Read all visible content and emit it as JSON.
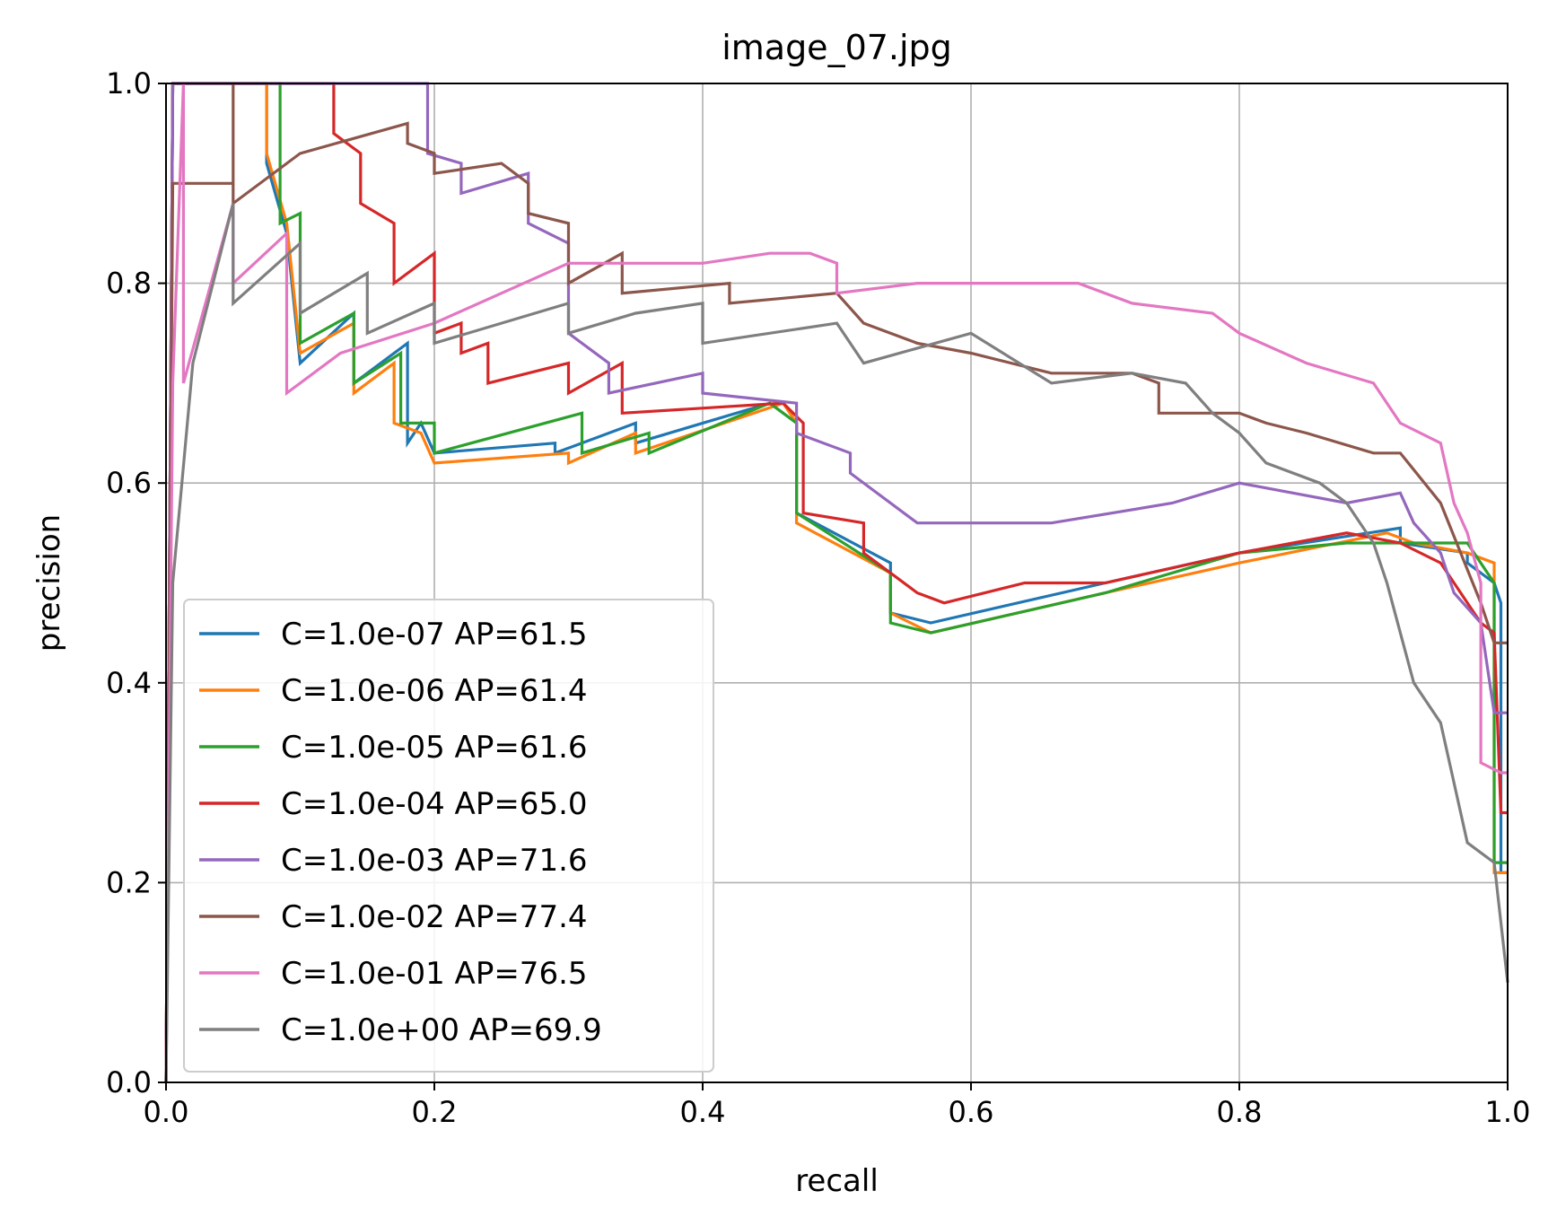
{
  "chart_data": {
    "type": "line",
    "title": "image_07.jpg",
    "xlabel": "recall",
    "ylabel": "precision",
    "xlim": [
      0.0,
      1.0
    ],
    "ylim": [
      0.0,
      1.0
    ],
    "xticks": [
      "0.0",
      "0.2",
      "0.4",
      "0.6",
      "0.8",
      "1.0"
    ],
    "yticks": [
      "0.0",
      "0.2",
      "0.4",
      "0.6",
      "0.8",
      "1.0"
    ],
    "grid": true,
    "legend_position": "lower-left",
    "series": [
      {
        "name": "C=1.0e-07 AP=61.5",
        "color": "#1f77b4",
        "points": [
          [
            0.0,
            0.0
          ],
          [
            0.005,
            1.0
          ],
          [
            0.075,
            1.0
          ],
          [
            0.075,
            0.92
          ],
          [
            0.09,
            0.85
          ],
          [
            0.1,
            0.72
          ],
          [
            0.14,
            0.77
          ],
          [
            0.14,
            0.7
          ],
          [
            0.18,
            0.74
          ],
          [
            0.18,
            0.64
          ],
          [
            0.19,
            0.66
          ],
          [
            0.2,
            0.63
          ],
          [
            0.29,
            0.64
          ],
          [
            0.29,
            0.63
          ],
          [
            0.35,
            0.66
          ],
          [
            0.35,
            0.64
          ],
          [
            0.45,
            0.68
          ],
          [
            0.47,
            0.66
          ],
          [
            0.47,
            0.57
          ],
          [
            0.54,
            0.52
          ],
          [
            0.54,
            0.47
          ],
          [
            0.57,
            0.46
          ],
          [
            0.7,
            0.5
          ],
          [
            0.8,
            0.53
          ],
          [
            0.92,
            0.555
          ],
          [
            0.92,
            0.54
          ],
          [
            0.97,
            0.53
          ],
          [
            0.97,
            0.52
          ],
          [
            0.99,
            0.5
          ],
          [
            0.995,
            0.48
          ],
          [
            0.995,
            0.21
          ],
          [
            1.0,
            0.21
          ]
        ]
      },
      {
        "name": "C=1.0e-06 AP=61.4",
        "color": "#ff7f0e",
        "points": [
          [
            0.0,
            0.0
          ],
          [
            0.005,
            1.0
          ],
          [
            0.075,
            1.0
          ],
          [
            0.075,
            0.93
          ],
          [
            0.09,
            0.86
          ],
          [
            0.1,
            0.73
          ],
          [
            0.14,
            0.76
          ],
          [
            0.14,
            0.69
          ],
          [
            0.17,
            0.72
          ],
          [
            0.17,
            0.66
          ],
          [
            0.19,
            0.65
          ],
          [
            0.2,
            0.62
          ],
          [
            0.3,
            0.63
          ],
          [
            0.3,
            0.62
          ],
          [
            0.35,
            0.65
          ],
          [
            0.35,
            0.63
          ],
          [
            0.46,
            0.68
          ],
          [
            0.47,
            0.66
          ],
          [
            0.47,
            0.56
          ],
          [
            0.54,
            0.51
          ],
          [
            0.54,
            0.47
          ],
          [
            0.57,
            0.45
          ],
          [
            0.7,
            0.49
          ],
          [
            0.8,
            0.52
          ],
          [
            0.91,
            0.55
          ],
          [
            0.93,
            0.54
          ],
          [
            0.97,
            0.53
          ],
          [
            0.99,
            0.52
          ],
          [
            0.99,
            0.21
          ],
          [
            1.0,
            0.21
          ]
        ]
      },
      {
        "name": "C=1.0e-05 AP=61.6",
        "color": "#2ca02c",
        "points": [
          [
            0.0,
            0.0
          ],
          [
            0.005,
            1.0
          ],
          [
            0.085,
            1.0
          ],
          [
            0.085,
            0.86
          ],
          [
            0.1,
            0.87
          ],
          [
            0.1,
            0.74
          ],
          [
            0.14,
            0.77
          ],
          [
            0.14,
            0.7
          ],
          [
            0.175,
            0.73
          ],
          [
            0.175,
            0.66
          ],
          [
            0.2,
            0.66
          ],
          [
            0.2,
            0.63
          ],
          [
            0.31,
            0.67
          ],
          [
            0.31,
            0.63
          ],
          [
            0.36,
            0.65
          ],
          [
            0.36,
            0.63
          ],
          [
            0.45,
            0.68
          ],
          [
            0.47,
            0.66
          ],
          [
            0.47,
            0.57
          ],
          [
            0.54,
            0.51
          ],
          [
            0.54,
            0.46
          ],
          [
            0.57,
            0.45
          ],
          [
            0.7,
            0.49
          ],
          [
            0.8,
            0.53
          ],
          [
            0.88,
            0.54
          ],
          [
            0.92,
            0.54
          ],
          [
            0.97,
            0.54
          ],
          [
            0.99,
            0.5
          ],
          [
            0.99,
            0.22
          ],
          [
            1.0,
            0.22
          ]
        ]
      },
      {
        "name": "C=1.0e-04 AP=65.0",
        "color": "#d62728",
        "points": [
          [
            0.0,
            0.0
          ],
          [
            0.005,
            1.0
          ],
          [
            0.125,
            1.0
          ],
          [
            0.125,
            0.95
          ],
          [
            0.145,
            0.93
          ],
          [
            0.145,
            0.88
          ],
          [
            0.17,
            0.86
          ],
          [
            0.17,
            0.8
          ],
          [
            0.2,
            0.83
          ],
          [
            0.2,
            0.75
          ],
          [
            0.22,
            0.76
          ],
          [
            0.22,
            0.73
          ],
          [
            0.24,
            0.74
          ],
          [
            0.24,
            0.7
          ],
          [
            0.3,
            0.72
          ],
          [
            0.3,
            0.69
          ],
          [
            0.34,
            0.72
          ],
          [
            0.34,
            0.67
          ],
          [
            0.46,
            0.68
          ],
          [
            0.475,
            0.66
          ],
          [
            0.475,
            0.57
          ],
          [
            0.52,
            0.56
          ],
          [
            0.52,
            0.53
          ],
          [
            0.56,
            0.49
          ],
          [
            0.58,
            0.48
          ],
          [
            0.64,
            0.5
          ],
          [
            0.7,
            0.5
          ],
          [
            0.8,
            0.53
          ],
          [
            0.88,
            0.55
          ],
          [
            0.92,
            0.54
          ],
          [
            0.95,
            0.52
          ],
          [
            0.98,
            0.46
          ],
          [
            0.99,
            0.45
          ],
          [
            0.995,
            0.27
          ],
          [
            1.0,
            0.27
          ]
        ]
      },
      {
        "name": "C=1.0e-03 AP=71.6",
        "color": "#9467bd",
        "points": [
          [
            0.0,
            0.0
          ],
          [
            0.005,
            1.0
          ],
          [
            0.195,
            1.0
          ],
          [
            0.195,
            0.93
          ],
          [
            0.22,
            0.92
          ],
          [
            0.22,
            0.89
          ],
          [
            0.27,
            0.91
          ],
          [
            0.27,
            0.86
          ],
          [
            0.3,
            0.84
          ],
          [
            0.3,
            0.75
          ],
          [
            0.33,
            0.72
          ],
          [
            0.33,
            0.69
          ],
          [
            0.4,
            0.71
          ],
          [
            0.4,
            0.69
          ],
          [
            0.47,
            0.68
          ],
          [
            0.47,
            0.65
          ],
          [
            0.51,
            0.63
          ],
          [
            0.51,
            0.61
          ],
          [
            0.56,
            0.56
          ],
          [
            0.6,
            0.56
          ],
          [
            0.66,
            0.56
          ],
          [
            0.75,
            0.58
          ],
          [
            0.8,
            0.6
          ],
          [
            0.84,
            0.59
          ],
          [
            0.88,
            0.58
          ],
          [
            0.92,
            0.59
          ],
          [
            0.93,
            0.56
          ],
          [
            0.95,
            0.53
          ],
          [
            0.96,
            0.49
          ],
          [
            0.98,
            0.46
          ],
          [
            0.99,
            0.37
          ],
          [
            1.0,
            0.37
          ]
        ]
      },
      {
        "name": "C=1.0e-02 AP=77.4",
        "color": "#8c564b",
        "points": [
          [
            0.0,
            0.0
          ],
          [
            0.005,
            0.9
          ],
          [
            0.05,
            0.9
          ],
          [
            0.05,
            1.0
          ],
          [
            0.05,
            0.88
          ],
          [
            0.1,
            0.93
          ],
          [
            0.18,
            0.96
          ],
          [
            0.18,
            0.94
          ],
          [
            0.2,
            0.93
          ],
          [
            0.2,
            0.91
          ],
          [
            0.25,
            0.92
          ],
          [
            0.27,
            0.9
          ],
          [
            0.27,
            0.87
          ],
          [
            0.3,
            0.86
          ],
          [
            0.3,
            0.8
          ],
          [
            0.34,
            0.83
          ],
          [
            0.34,
            0.79
          ],
          [
            0.42,
            0.8
          ],
          [
            0.42,
            0.78
          ],
          [
            0.5,
            0.79
          ],
          [
            0.52,
            0.76
          ],
          [
            0.56,
            0.74
          ],
          [
            0.6,
            0.73
          ],
          [
            0.66,
            0.71
          ],
          [
            0.72,
            0.71
          ],
          [
            0.74,
            0.7
          ],
          [
            0.74,
            0.67
          ],
          [
            0.8,
            0.67
          ],
          [
            0.82,
            0.66
          ],
          [
            0.85,
            0.65
          ],
          [
            0.9,
            0.63
          ],
          [
            0.92,
            0.63
          ],
          [
            0.95,
            0.58
          ],
          [
            0.98,
            0.48
          ],
          [
            0.99,
            0.44
          ],
          [
            1.0,
            0.44
          ]
        ]
      },
      {
        "name": "C=1.0e-01 AP=76.5",
        "color": "#e377c2",
        "points": [
          [
            0.0,
            0.0
          ],
          [
            0.005,
            0.7
          ],
          [
            0.013,
            1.0
          ],
          [
            0.013,
            0.7
          ],
          [
            0.05,
            0.88
          ],
          [
            0.05,
            0.8
          ],
          [
            0.09,
            0.85
          ],
          [
            0.09,
            0.69
          ],
          [
            0.13,
            0.73
          ],
          [
            0.2,
            0.76
          ],
          [
            0.3,
            0.82
          ],
          [
            0.34,
            0.82
          ],
          [
            0.4,
            0.82
          ],
          [
            0.45,
            0.83
          ],
          [
            0.48,
            0.83
          ],
          [
            0.5,
            0.82
          ],
          [
            0.5,
            0.79
          ],
          [
            0.56,
            0.8
          ],
          [
            0.6,
            0.8
          ],
          [
            0.68,
            0.8
          ],
          [
            0.72,
            0.78
          ],
          [
            0.78,
            0.77
          ],
          [
            0.8,
            0.75
          ],
          [
            0.85,
            0.72
          ],
          [
            0.9,
            0.7
          ],
          [
            0.92,
            0.66
          ],
          [
            0.95,
            0.64
          ],
          [
            0.96,
            0.58
          ],
          [
            0.97,
            0.55
          ],
          [
            0.98,
            0.5
          ],
          [
            0.98,
            0.32
          ],
          [
            0.995,
            0.31
          ],
          [
            1.0,
            0.31
          ]
        ]
      },
      {
        "name": "C=1.0e+00 AP=69.9",
        "color": "#7f7f7f",
        "points": [
          [
            0.0,
            0.0
          ],
          [
            0.005,
            0.5
          ],
          [
            0.02,
            0.72
          ],
          [
            0.05,
            0.88
          ],
          [
            0.05,
            0.78
          ],
          [
            0.1,
            0.84
          ],
          [
            0.1,
            0.77
          ],
          [
            0.15,
            0.81
          ],
          [
            0.15,
            0.75
          ],
          [
            0.2,
            0.78
          ],
          [
            0.2,
            0.74
          ],
          [
            0.3,
            0.78
          ],
          [
            0.3,
            0.75
          ],
          [
            0.35,
            0.77
          ],
          [
            0.4,
            0.78
          ],
          [
            0.4,
            0.74
          ],
          [
            0.5,
            0.76
          ],
          [
            0.52,
            0.72
          ],
          [
            0.6,
            0.75
          ],
          [
            0.66,
            0.7
          ],
          [
            0.72,
            0.71
          ],
          [
            0.76,
            0.7
          ],
          [
            0.78,
            0.67
          ],
          [
            0.8,
            0.65
          ],
          [
            0.82,
            0.62
          ],
          [
            0.86,
            0.6
          ],
          [
            0.88,
            0.58
          ],
          [
            0.9,
            0.54
          ],
          [
            0.91,
            0.5
          ],
          [
            0.92,
            0.45
          ],
          [
            0.93,
            0.4
          ],
          [
            0.95,
            0.36
          ],
          [
            0.97,
            0.24
          ],
          [
            0.99,
            0.22
          ],
          [
            1.0,
            0.1
          ]
        ]
      }
    ]
  }
}
